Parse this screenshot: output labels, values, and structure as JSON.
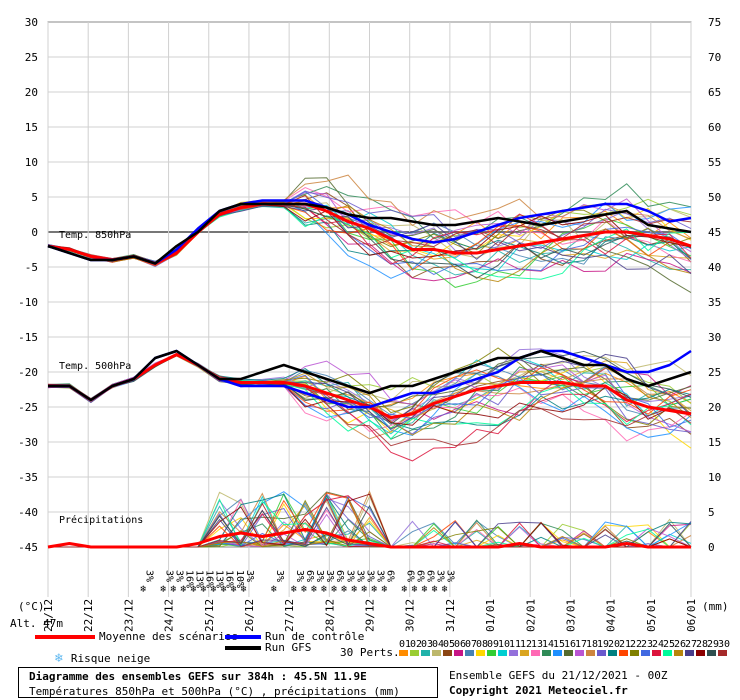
{
  "chart_data": {
    "type": "line",
    "title": "Diagramme des ensembles GEFS sur 384h : 45.5N 11.9E",
    "subtitle": "Températures 850hPa et 500hPa (°C) , précipitations (mm)",
    "y_left": {
      "label": "(°C)",
      "range": [
        -45,
        30
      ],
      "ticks": [
        "30",
        "25",
        "20",
        "15",
        "10",
        "5",
        "0",
        "-5",
        "-10",
        "-15",
        "-20",
        "-25",
        "-30",
        "-35",
        "-40",
        "-45"
      ]
    },
    "y_right": {
      "label": "(mm)",
      "ticks_upper": [
        "75",
        "70",
        "65",
        "60",
        "55",
        "50",
        "45",
        "40",
        "35"
      ],
      "ticks_lower": [
        "30",
        "25",
        "20",
        "15",
        "10",
        "5",
        "0"
      ]
    },
    "x_labels": [
      "21/12",
      "22/12",
      "23/12",
      "24/12",
      "25/12",
      "26/12",
      "27/12",
      "28/12",
      "29/12",
      "30/12",
      "31/12",
      "01/01",
      "02/01",
      "03/01",
      "04/01",
      "05/01",
      "06/01"
    ],
    "annotations": {
      "t850": "Temp. 850hPa",
      "t500": "Temp. 500hPa",
      "precip": "Précipitations",
      "altitude": "Alt. 47m"
    },
    "series": [
      {
        "name": "Moyenne des scénarios (T850)",
        "color": "#ff0000",
        "values": [
          -2,
          -2.5,
          -3.5,
          -4,
          -3.5,
          -4.5,
          -3,
          0,
          2.5,
          3.5,
          4,
          4,
          4,
          3,
          1.5,
          0.5,
          -1,
          -2.5,
          -2.5,
          -3,
          -3,
          -2.5,
          -2,
          -1.5,
          -1,
          -0.5,
          0,
          0,
          -0.5,
          -1,
          -2
        ]
      },
      {
        "name": "Run de contrôle (T850)",
        "color": "#0000ff",
        "values": [
          -2,
          -3,
          -4,
          -4,
          -3.5,
          -4.5,
          -2.5,
          0.5,
          3,
          4,
          4.5,
          4.5,
          4.5,
          3.5,
          2.5,
          1,
          0,
          -1,
          -1.5,
          -1,
          0,
          1,
          2,
          2.5,
          3,
          3.5,
          4,
          4,
          3,
          1.5,
          2
        ]
      },
      {
        "name": "Run GFS (T850)",
        "color": "#000000",
        "values": [
          -2,
          -3,
          -4,
          -4,
          -3.5,
          -4.5,
          -2,
          0,
          3,
          4,
          4,
          4,
          4,
          3.5,
          2.5,
          2,
          2,
          1.5,
          1,
          1,
          1.5,
          2,
          1.5,
          1,
          1.5,
          2,
          2.5,
          3,
          1,
          0.5,
          0
        ]
      },
      {
        "name": "Moyenne des scénarios (T500)",
        "color": "#ff0000",
        "values": [
          -22,
          -22,
          -24,
          -22,
          -21,
          -19,
          -17.5,
          -19,
          -21,
          -21.5,
          -21.5,
          -21.5,
          -22,
          -23,
          -24,
          -25,
          -26.5,
          -26,
          -24.5,
          -23.5,
          -22.5,
          -22,
          -21.5,
          -21.5,
          -21.5,
          -22,
          -22,
          -24,
          -25,
          -25.5,
          -26
        ]
      },
      {
        "name": "Run de contrôle (T500)",
        "color": "#0000ff",
        "values": [
          -22,
          -22,
          -24,
          -22,
          -21,
          -18,
          -17,
          -19,
          -21,
          -22,
          -22,
          -22,
          -23,
          -24,
          -25,
          -25,
          -24,
          -23,
          -23,
          -22,
          -21,
          -20,
          -18,
          -17,
          -17,
          -18,
          -19,
          -20,
          -20,
          -19,
          -17
        ]
      },
      {
        "name": "Run GFS (T500)",
        "color": "#000000",
        "values": [
          -22,
          -22,
          -24,
          -22,
          -21,
          -18,
          -17,
          -19,
          -21,
          -21,
          -20,
          -19,
          -20,
          -21,
          -22,
          -23,
          -22,
          -22,
          -21,
          -20,
          -19,
          -18,
          -18,
          -17,
          -18,
          -19,
          -19,
          -21,
          -22,
          -21,
          -20
        ]
      },
      {
        "name": "Moyenne précipitations (mm)",
        "color": "#ff0000",
        "values": [
          0,
          0.5,
          0,
          0,
          0,
          0,
          0,
          0.5,
          1.5,
          2,
          1.5,
          2,
          2.5,
          2,
          1,
          0.5,
          0,
          0,
          0,
          0,
          0,
          0,
          0.5,
          0,
          0,
          0,
          0,
          0.5,
          0,
          0,
          0
        ]
      }
    ],
    "ensemble_members": 30,
    "snow_risk_labels": [
      "3%",
      "3%",
      "3%",
      "16%",
      "13%",
      "16%",
      "13%",
      "16%",
      "10%",
      "3%",
      "3%",
      "3%",
      "6%",
      "3%",
      "3%",
      "6%",
      "3%",
      "3%",
      "3%",
      "3%",
      "6%",
      "6%",
      "6%",
      "6%",
      "3%",
      "3%"
    ],
    "legend": [
      {
        "label": "Moyenne des scénarios",
        "color": "#ff0000"
      },
      {
        "label": "Run de contrôle",
        "color": "#0000ff"
      },
      {
        "label": "Run GFS",
        "color": "#000000"
      },
      {
        "label": "Risque neige",
        "icon": "snowflake-icon"
      }
    ],
    "perturbations": {
      "label": "30 Perts.",
      "codes": [
        "01",
        "02",
        "03",
        "04",
        "05",
        "06",
        "07",
        "08",
        "09",
        "10",
        "11",
        "12",
        "13",
        "14",
        "15",
        "16",
        "17",
        "18",
        "19",
        "20",
        "21",
        "22",
        "23",
        "24",
        "25",
        "26",
        "27",
        "28",
        "29",
        "30"
      ],
      "colors": [
        "#ff8c00",
        "#9acd32",
        "#20b2aa",
        "#bdb76b",
        "#8b4513",
        "#c71585",
        "#4682b4",
        "#ffd700",
        "#32cd32",
        "#00ced1",
        "#9370db",
        "#daa520",
        "#ff69b4",
        "#2e8b57",
        "#1e90ff",
        "#556b2f",
        "#ba55d3",
        "#cd853f",
        "#6a5acd",
        "#008080",
        "#ff4500",
        "#808000",
        "#4169e1",
        "#dc143c",
        "#00fa9a",
        "#b8860b",
        "#483d8b",
        "#8b0000",
        "#2f4f4f",
        "#a52a2a"
      ]
    }
  },
  "footer": {
    "title": "Diagramme des ensembles GEFS sur 384h : 45.5N 11.9E",
    "subtitle": "Températures 850hPa et 500hPa (°C) , précipitations (mm)",
    "ensemble_run": "Ensemble GEFS du 21/12/2021 - 00Z",
    "copyright": "Copyright 2021 Meteociel.fr"
  }
}
